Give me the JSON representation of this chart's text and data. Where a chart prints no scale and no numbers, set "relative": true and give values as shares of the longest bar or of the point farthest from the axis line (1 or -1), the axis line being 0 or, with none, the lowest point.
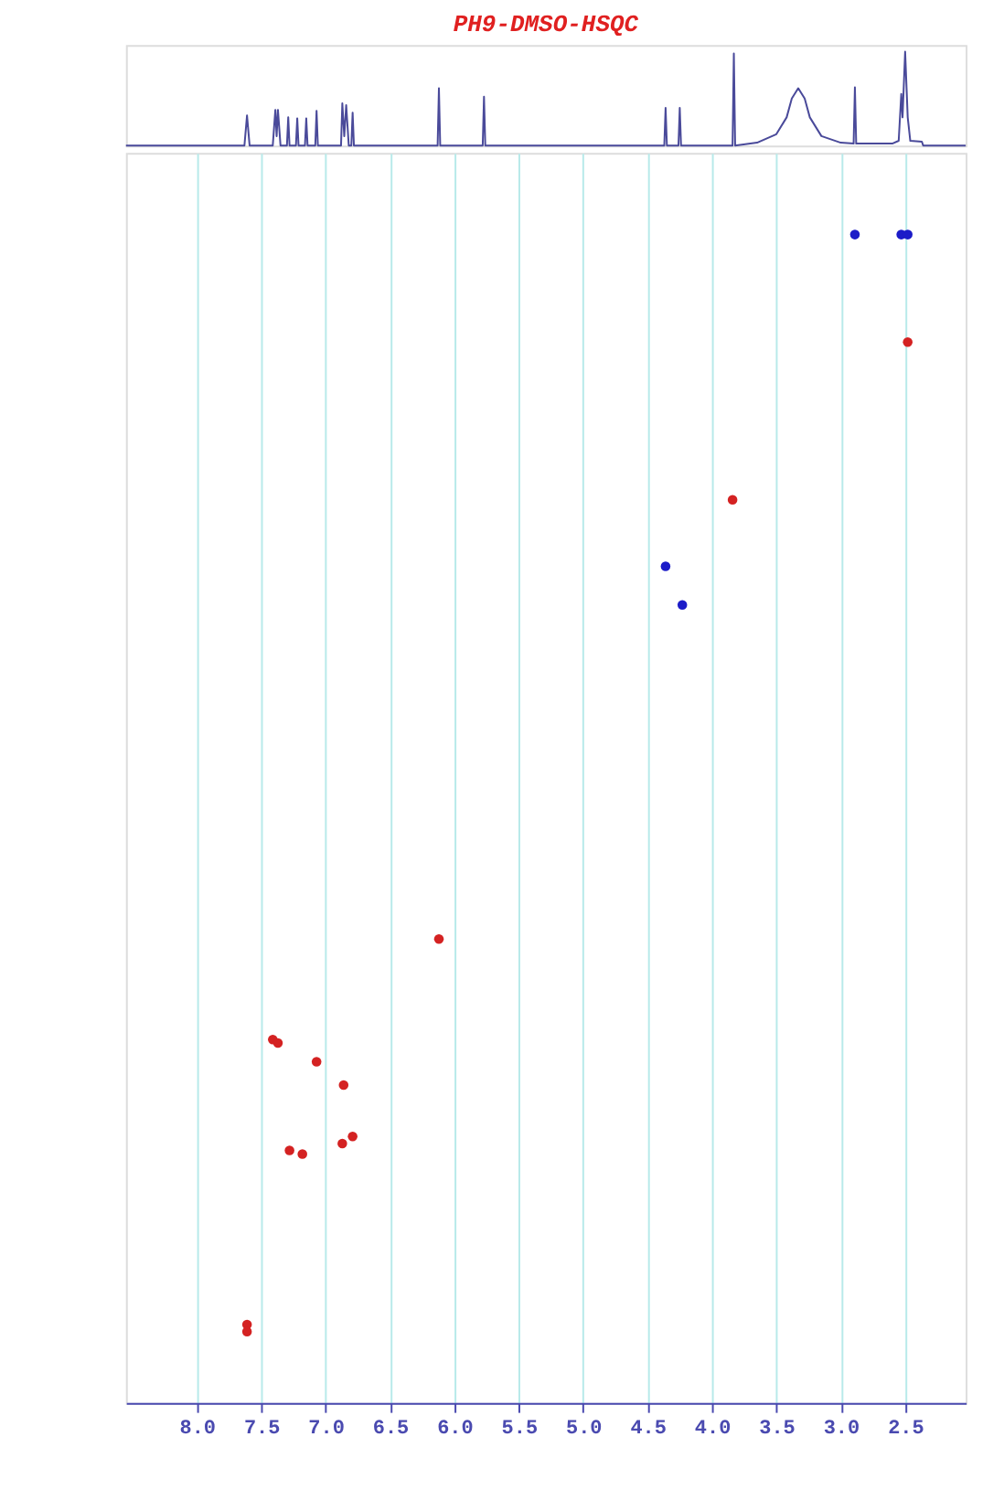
{
  "chart_data": [
    {
      "type": "line",
      "title": "PH9-DMSO-HSQC",
      "relative": true,
      "xlim": [
        8.55,
        2.03
      ],
      "line_style": "solid",
      "x": [
        8.55,
        7.63,
        7.61,
        7.59,
        7.41,
        7.39,
        7.38,
        7.37,
        7.35,
        7.3,
        7.29,
        7.28,
        7.23,
        7.22,
        7.21,
        7.16,
        7.15,
        7.14,
        7.08,
        7.07,
        7.06,
        6.88,
        6.87,
        6.855,
        6.84,
        6.82,
        6.8,
        6.79,
        6.78,
        6.13,
        6.12,
        6.11,
        5.78,
        5.77,
        5.76,
        4.37,
        4.36,
        4.35,
        4.26,
        4.25,
        4.24,
        3.84,
        3.83,
        3.82,
        3.65,
        3.5,
        3.42,
        3.38,
        3.33,
        3.28,
        3.24,
        3.15,
        3.0,
        2.9,
        2.89,
        2.88,
        2.6,
        2.55,
        2.53,
        2.52,
        2.5,
        2.48,
        2.46,
        2.37,
        2.36,
        2.03
      ],
      "series": [
        {
          "color": "#4a4a9a",
          "values": [
            0,
            0,
            0.32,
            0,
            0,
            0.38,
            0.1,
            0.38,
            0,
            0,
            0.3,
            0,
            0,
            0.29,
            0,
            0,
            0.29,
            0,
            0,
            0.37,
            0,
            0,
            0.45,
            0.1,
            0.43,
            0,
            0,
            0.35,
            0,
            0,
            0.61,
            0,
            0,
            0.52,
            0,
            0,
            0.4,
            0,
            0,
            0.4,
            0,
            0,
            0.98,
            0,
            0.03,
            0.12,
            0.3,
            0.5,
            0.61,
            0.5,
            0.3,
            0.1,
            0.03,
            0.02,
            0.62,
            0.02,
            0.02,
            0.05,
            0.55,
            0.3,
            1.0,
            0.3,
            0.05,
            0.04,
            0,
            0
          ]
        }
      ]
    },
    {
      "type": "scatter",
      "relative": true,
      "xlim": [
        8.55,
        2.03
      ],
      "grid": "x",
      "marker": "circle",
      "xticks": [
        {
          "value": 8,
          "label": "8.0"
        },
        {
          "value": 7.5,
          "label": "7.5"
        },
        {
          "value": 7,
          "label": "7.0"
        },
        {
          "value": 6.5,
          "label": "6.5"
        },
        {
          "value": 6,
          "label": "6.0"
        },
        {
          "value": 5.5,
          "label": "5.5"
        },
        {
          "value": 5,
          "label": "5.0"
        },
        {
          "value": 4.5,
          "label": "4.5"
        },
        {
          "value": 4,
          "label": "4.0"
        },
        {
          "value": 3.5,
          "label": "3.5"
        },
        {
          "value": 3,
          "label": "3.0"
        },
        {
          "value": 2.5,
          "label": "2.5"
        }
      ],
      "series": [
        {
          "color": "#1c1cc8",
          "x": [
            2.89,
            2.53,
            2.48,
            4.36,
            4.23
          ],
          "values": [
            1.0,
            1.0,
            1.0,
            0.716,
            0.683
          ]
        },
        {
          "color": "#d42222",
          "x": [
            2.48,
            3.84,
            6.12,
            7.41,
            7.37,
            7.07,
            6.86,
            6.79,
            6.87,
            7.28,
            7.18,
            7.61,
            7.61
          ],
          "values": [
            0.908,
            0.773,
            0.397,
            0.311,
            0.308,
            0.292,
            0.272,
            0.228,
            0.222,
            0.216,
            0.213,
            0.067,
            0.061
          ]
        }
      ]
    }
  ]
}
